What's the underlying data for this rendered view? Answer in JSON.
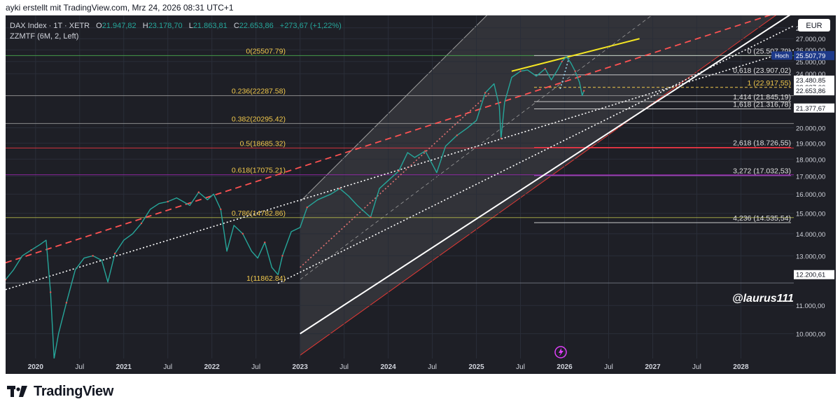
{
  "header": {
    "caption": "ayki erstellt mit TradingView.com, Mrz 24, 2026 08:31 UTC+1"
  },
  "brand": {
    "name": "TradingView"
  },
  "legend": {
    "symbol": "DAX Index · 1T · XETR",
    "o_label": "O",
    "o_value": "21.947,82",
    "h_label": "H",
    "h_value": "23.178,70",
    "l_label": "L",
    "l_value": "21.863,81",
    "c_label": "C",
    "c_value": "22.653,86",
    "change": "+273,67 (+1,22%)",
    "indicator": "ZZMTF (6M, 2, Left)"
  },
  "currency": "EUR",
  "watermark": "@laurus111",
  "chart_data": {
    "type": "line",
    "title": "DAX Index · 1T · XETR",
    "x_range": [
      2019.66,
      2028.6
    ],
    "ylim": [
      9200,
      29200
    ],
    "y_scale": "log",
    "x_ticks": [
      {
        "t": 2020.0,
        "label": "2020",
        "major": true
      },
      {
        "t": 2020.5,
        "label": "Jul",
        "major": false
      },
      {
        "t": 2021.0,
        "label": "2021",
        "major": true
      },
      {
        "t": 2021.5,
        "label": "Jul",
        "major": false
      },
      {
        "t": 2022.0,
        "label": "2022",
        "major": true
      },
      {
        "t": 2022.5,
        "label": "Jul",
        "major": false
      },
      {
        "t": 2023.0,
        "label": "2023",
        "major": true
      },
      {
        "t": 2023.5,
        "label": "Jul",
        "major": false
      },
      {
        "t": 2024.0,
        "label": "2024",
        "major": true
      },
      {
        "t": 2024.5,
        "label": "Jul",
        "major": false
      },
      {
        "t": 2025.0,
        "label": "2025",
        "major": true
      },
      {
        "t": 2025.5,
        "label": "Jul",
        "major": false
      },
      {
        "t": 2026.0,
        "label": "2026",
        "major": true
      },
      {
        "t": 2026.5,
        "label": "Jul",
        "major": false
      },
      {
        "t": 2027.0,
        "label": "2027",
        "major": true
      },
      {
        "t": 2027.5,
        "label": "Jul",
        "major": false
      },
      {
        "t": 2028.0,
        "label": "2028",
        "major": true
      }
    ],
    "y_ticks": [
      {
        "v": 10000,
        "label": "10.000,00"
      },
      {
        "v": 11000,
        "label": "11.000,00"
      },
      {
        "v": 13000,
        "label": "13.000,00"
      },
      {
        "v": 14000,
        "label": "14.000,00"
      },
      {
        "v": 15000,
        "label": "15.000,00"
      },
      {
        "v": 16000,
        "label": "16.000,00"
      },
      {
        "v": 17000,
        "label": "17.000,00"
      },
      {
        "v": 18000,
        "label": "18.000,00"
      },
      {
        "v": 19000,
        "label": "19.000,00"
      },
      {
        "v": 20000,
        "label": "20.000,00"
      },
      {
        "v": 24000,
        "label": "24.000,00"
      },
      {
        "v": 25000,
        "label": "25.000,00"
      },
      {
        "v": 26000,
        "label": "26.000,00"
      },
      {
        "v": 27000,
        "label": "27.000,00"
      },
      {
        "v": 28000,
        "label": "28.000,00"
      }
    ],
    "price_tags": [
      {
        "v": 25507.79,
        "label": "25.507,79",
        "prefix": "Hoch",
        "bg": "#1e3a8a",
        "fg": "#ffffff"
      },
      {
        "v": 23480.85,
        "label": "23.480,85",
        "bg": "#ffffff",
        "fg": "#131722"
      },
      {
        "v": 22937.0,
        "label": "22.937,00",
        "bg": "#ffffff",
        "fg": "#131722"
      },
      {
        "v": 22653.86,
        "label": "22.653,86",
        "bg": "#ffffff",
        "fg": "#131722"
      },
      {
        "v": 21377.67,
        "label": "21.377,67",
        "bg": "#ffffff",
        "fg": "#131722"
      },
      {
        "v": 12200.61,
        "label": "12.200,61",
        "bg": "#ffffff",
        "fg": "#131722"
      }
    ],
    "fib_retracement": [
      {
        "label": "0(25507.79)",
        "v": 25507.79,
        "color": "#4caf50"
      },
      {
        "label": "0.236(22287.58)",
        "v": 22287.58,
        "color": "#9e9e9e"
      },
      {
        "label": "0.382(20295.42)",
        "v": 20295.42,
        "color": "#9e9e9e"
      },
      {
        "label": "0.5(18685.32)",
        "v": 18685.32,
        "color": "#f23645"
      },
      {
        "label": "0.618(17075.21)",
        "v": 17075.21,
        "color": "#9c27b0"
      },
      {
        "label": "0.786(14782.86)",
        "v": 14782.86,
        "color": "#b5b84a"
      },
      {
        "label": "1(11862.84)",
        "v": 11862.84,
        "color": "#787b86"
      }
    ],
    "fib_extension": [
      {
        "label": "0 (25.507,79)",
        "v": 25507.79,
        "color": "#c8c8c8",
        "text": "#e0e0e0"
      },
      {
        "label": "0,618 (23.907,02)",
        "v": 23907.02,
        "color": "#c8c8c8",
        "text": "#e0e0e0"
      },
      {
        "label": "1 (22.917,55)",
        "v": 22917.55,
        "color": "#f2c94c",
        "text": "#f2c94c",
        "dashed": true
      },
      {
        "label": "1,414 (21.845,19)",
        "v": 21845.19,
        "color": "#c8c8c8",
        "text": "#e0e0e0"
      },
      {
        "label": "1,618 (21.316,78)",
        "v": 21316.78,
        "color": "#c8c8c8",
        "text": "#e0e0e0"
      },
      {
        "label": "2,618 (18.726,55)",
        "v": 18726.55,
        "color": "#f23645",
        "text": "#e0e0e0"
      },
      {
        "label": "3,272 (17.032,53)",
        "v": 17032.53,
        "color": "#b34fd1",
        "text": "#e0e0e0"
      },
      {
        "label": "4,236 (14.535,54)",
        "v": 14535.54,
        "color": "#c8c8c8",
        "text": "#e0e0e0"
      }
    ],
    "price_series": [
      [
        2019.66,
        12000
      ],
      [
        2019.75,
        12400
      ],
      [
        2019.85,
        13000
      ],
      [
        2019.95,
        13250
      ],
      [
        2020.05,
        13500
      ],
      [
        2020.12,
        13700
      ],
      [
        2020.17,
        11500
      ],
      [
        2020.21,
        9200
      ],
      [
        2020.26,
        10000
      ],
      [
        2020.35,
        11100
      ],
      [
        2020.45,
        12400
      ],
      [
        2020.55,
        12900
      ],
      [
        2020.65,
        13000
      ],
      [
        2020.75,
        12800
      ],
      [
        2020.82,
        11900
      ],
      [
        2020.9,
        13100
      ],
      [
        2021.0,
        13700
      ],
      [
        2021.1,
        14000
      ],
      [
        2021.2,
        14500
      ],
      [
        2021.3,
        15200
      ],
      [
        2021.4,
        15500
      ],
      [
        2021.5,
        15600
      ],
      [
        2021.6,
        15800
      ],
      [
        2021.75,
        15400
      ],
      [
        2021.85,
        16100
      ],
      [
        2021.95,
        15700
      ],
      [
        2022.02,
        16000
      ],
      [
        2022.1,
        15200
      ],
      [
        2022.17,
        13200
      ],
      [
        2022.25,
        14400
      ],
      [
        2022.35,
        14000
      ],
      [
        2022.45,
        13200
      ],
      [
        2022.52,
        12900
      ],
      [
        2022.6,
        13600
      ],
      [
        2022.68,
        12500
      ],
      [
        2022.75,
        12200
      ],
      [
        2022.8,
        13000
      ],
      [
        2022.9,
        14100
      ],
      [
        2023.0,
        14300
      ],
      [
        2023.08,
        15300
      ],
      [
        2023.2,
        15700
      ],
      [
        2023.35,
        16000
      ],
      [
        2023.45,
        16300
      ],
      [
        2023.55,
        15900
      ],
      [
        2023.65,
        15400
      ],
      [
        2023.8,
        14800
      ],
      [
        2023.9,
        16300
      ],
      [
        2024.0,
        16750
      ],
      [
        2024.12,
        17300
      ],
      [
        2024.22,
        18400
      ],
      [
        2024.3,
        18100
      ],
      [
        2024.42,
        18500
      ],
      [
        2024.55,
        17200
      ],
      [
        2024.65,
        18800
      ],
      [
        2024.78,
        19500
      ],
      [
        2024.9,
        20000
      ],
      [
        2025.0,
        20500
      ],
      [
        2025.1,
        22500
      ],
      [
        2025.2,
        23200
      ],
      [
        2025.26,
        21500
      ],
      [
        2025.28,
        19300
      ],
      [
        2025.32,
        21800
      ],
      [
        2025.4,
        23700
      ],
      [
        2025.5,
        24200
      ],
      [
        2025.58,
        24300
      ],
      [
        2025.68,
        23800
      ],
      [
        2025.78,
        24400
      ],
      [
        2025.85,
        23500
      ],
      [
        2025.92,
        24300
      ],
      [
        2025.97,
        25000
      ],
      [
        2026.02,
        25400
      ],
      [
        2026.07,
        24900
      ],
      [
        2026.12,
        24200
      ],
      [
        2026.17,
        23300
      ],
      [
        2026.2,
        22300
      ],
      [
        2026.22,
        22653.86
      ]
    ],
    "annotation_lines": [
      {
        "type": "dashed",
        "color": "#ff5252",
        "from": [
          2019.66,
          12700
        ],
        "to": [
          2028.6,
          30000
        ]
      },
      {
        "type": "dotted",
        "color": "#ffffff",
        "from": [
          2019.66,
          11600
        ],
        "to": [
          2028.6,
          26000
        ]
      },
      {
        "type": "dotted",
        "color": "#ffffff",
        "from": [
          2022.75,
          11850
        ],
        "to": [
          2028.6,
          28200
        ]
      },
      {
        "type": "solid",
        "color": "#ffffff",
        "from": [
          2023.0,
          10000
        ],
        "to": [
          2028.6,
          29500
        ]
      },
      {
        "type": "solid",
        "color": "#f5e623",
        "from": [
          2025.4,
          24200
        ],
        "to": [
          2026.85,
          27000
        ]
      },
      {
        "type": "dotted",
        "color": "#e57373",
        "from": [
          2023.0,
          12500
        ],
        "to": [
          2025.15,
          22500
        ]
      },
      {
        "type": "dotted",
        "color": "#a0d8ef",
        "from": [
          2025.95,
          22800
        ],
        "to": [
          2026.05,
          25300
        ]
      }
    ],
    "channel": {
      "upper_from": [
        2023.0,
        15600
      ],
      "upper_to": [
        2027.55,
        60000
      ],
      "lower_from": [
        2023.0,
        9300
      ],
      "lower_to": [
        2028.6,
        30500
      ],
      "mid_from": [
        2023.0,
        12000
      ],
      "mid_to": [
        2027.8,
        35000
      ]
    }
  }
}
